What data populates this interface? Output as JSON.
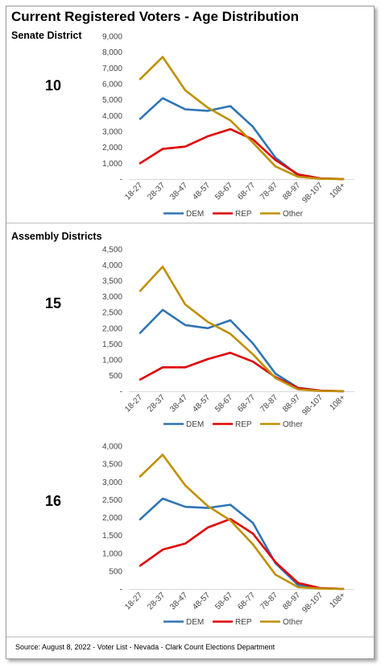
{
  "title": "Current Registered Voters - Age Distribution",
  "sections": [
    {
      "label": "Senate District"
    },
    {
      "label": "Assembly Districts"
    }
  ],
  "footer": "Source: August 8, 2022 - Voter List - Nevada - Clark Count Elections Department",
  "colors": {
    "DEM": "#2e74b5",
    "REP": "#e00000",
    "Other": "#bf9000"
  },
  "chart_data": [
    {
      "type": "line",
      "district": "10",
      "categories": [
        "18-27",
        "28-37",
        "38-47",
        "48-57",
        "58-67",
        "68-77",
        "78-87",
        "88-97",
        "98-107",
        "108+"
      ],
      "ylim": [
        0,
        9000
      ],
      "yticks": [
        "-",
        "1,000",
        "2,000",
        "3,000",
        "4,000",
        "5,000",
        "6,000",
        "7,000",
        "8,000",
        "9,000"
      ],
      "series": [
        {
          "name": "DEM",
          "values": [
            3800,
            5100,
            4400,
            4300,
            4600,
            3300,
            1350,
            250,
            40,
            5
          ]
        },
        {
          "name": "REP",
          "values": [
            1000,
            1900,
            2050,
            2700,
            3150,
            2500,
            1200,
            300,
            40,
            5
          ]
        },
        {
          "name": "Other",
          "values": [
            6300,
            7700,
            5600,
            4500,
            3700,
            2300,
            800,
            150,
            20,
            5
          ]
        }
      ]
    },
    {
      "type": "line",
      "district": "15",
      "categories": [
        "18-27",
        "28-37",
        "38-47",
        "48-57",
        "58-67",
        "68-77",
        "78-87",
        "88-97",
        "98-107",
        "108+"
      ],
      "ylim": [
        0,
        4500
      ],
      "yticks": [
        "-",
        "500",
        "1,000",
        "1,500",
        "2,000",
        "2,500",
        "3,000",
        "3,500",
        "4,000",
        "4,500"
      ],
      "series": [
        {
          "name": "DEM",
          "values": [
            1850,
            2580,
            2100,
            2000,
            2250,
            1520,
            560,
            110,
            20,
            3
          ]
        },
        {
          "name": "REP",
          "values": [
            370,
            760,
            760,
            1020,
            1220,
            940,
            450,
            100,
            20,
            3
          ]
        },
        {
          "name": "Other",
          "values": [
            3180,
            3950,
            2750,
            2200,
            1820,
            1170,
            420,
            60,
            10,
            2
          ]
        }
      ]
    },
    {
      "type": "line",
      "district": "16",
      "categories": [
        "18-27",
        "28-37",
        "38-47",
        "48-57",
        "58-67",
        "68-77",
        "78-87",
        "88-97",
        "98-107",
        "108+"
      ],
      "ylim": [
        0,
        4000
      ],
      "yticks": [
        "-",
        "500",
        "1,000",
        "1,500",
        "2,000",
        "2,500",
        "3,000",
        "3,500",
        "4,000"
      ],
      "series": [
        {
          "name": "DEM",
          "values": [
            1950,
            2530,
            2300,
            2270,
            2360,
            1850,
            720,
            110,
            20,
            3
          ]
        },
        {
          "name": "REP",
          "values": [
            650,
            1100,
            1270,
            1720,
            1960,
            1550,
            750,
            170,
            20,
            3
          ]
        },
        {
          "name": "Other",
          "values": [
            3150,
            3760,
            2900,
            2320,
            1920,
            1250,
            400,
            50,
            10,
            2
          ]
        }
      ]
    }
  ]
}
